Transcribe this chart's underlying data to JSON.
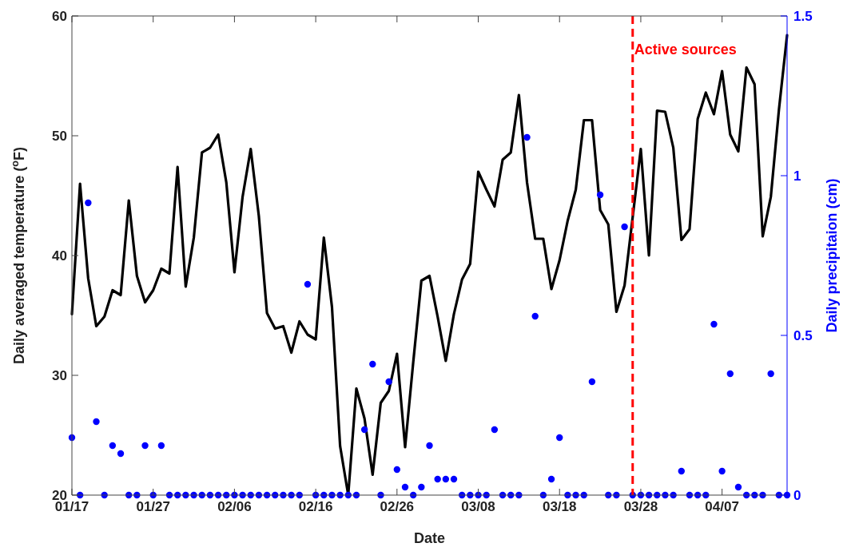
{
  "chart_data": {
    "type": "line",
    "xlabel": "Date",
    "ylabel": "Daily averaged temperature ($^{o}$F)",
    "y2label": "Daily precipitaion (cm)",
    "x": [
      "--01-17",
      "--01-18",
      "--01-19",
      "--01-20",
      "--01-21",
      "--01-22",
      "--01-23",
      "--01-24",
      "--01-25",
      "--01-26",
      "--01-27",
      "--01-28",
      "--01-29",
      "--01-30",
      "--01-31",
      "--02-01",
      "--02-02",
      "--02-03",
      "--02-04",
      "--02-05",
      "--02-06",
      "--02-07",
      "--02-08",
      "--02-09",
      "--02-10",
      "--02-11",
      "--02-12",
      "--02-13",
      "--02-14",
      "--02-15",
      "--02-16",
      "--02-17",
      "--02-18",
      "--02-19",
      "--02-20",
      "--02-21",
      "--02-22",
      "--02-23",
      "--02-24",
      "--02-25",
      "--02-26",
      "--02-27",
      "--02-28",
      "--03-01",
      "--03-02",
      "--03-03",
      "--03-04",
      "--03-05",
      "--03-06",
      "--03-07",
      "--03-08",
      "--03-09",
      "--03-10",
      "--03-11",
      "--03-12",
      "--03-13",
      "--03-14",
      "--03-15",
      "--03-16",
      "--03-17",
      "--03-18",
      "--03-19",
      "--03-20",
      "--03-21",
      "--03-22",
      "--03-23",
      "--03-24",
      "--03-25",
      "--03-26",
      "--03-27",
      "--03-28",
      "--03-29",
      "--03-30",
      "--03-31",
      "--04-01",
      "--04-02",
      "--04-03",
      "--04-04",
      "--04-05",
      "--04-06",
      "--04-07",
      "--04-08",
      "--04-09",
      "--04-10",
      "--04-11",
      "--04-12",
      "--04-13",
      "--04-14",
      "--04-15"
    ],
    "xlim": [
      "--01-17",
      "--04-15"
    ],
    "xticks": [
      {
        "value": "--01-17",
        "label": "01/17"
      },
      {
        "value": "--01-27",
        "label": "01/27"
      },
      {
        "value": "--02-06",
        "label": "02/06"
      },
      {
        "value": "--02-16",
        "label": "02/16"
      },
      {
        "value": "--02-26",
        "label": "02/26"
      },
      {
        "value": "--03-08",
        "label": "03/08"
      },
      {
        "value": "--03-18",
        "label": "03/18"
      },
      {
        "value": "--03-28",
        "label": "03/28"
      },
      {
        "value": "--04-07",
        "label": "04/07"
      }
    ],
    "ylim": [
      20,
      60
    ],
    "yticks": [
      20,
      30,
      40,
      50,
      60
    ],
    "y2lim": [
      0,
      1.5
    ],
    "y2ticks": [
      0,
      0.5,
      1,
      1.5
    ],
    "series": [
      {
        "color": "#000000",
        "values": [
          35.1,
          46.0,
          38.1,
          34.1,
          34.9,
          37.1,
          36.7,
          44.6,
          38.3,
          36.1,
          37.1,
          38.9,
          38.5,
          47.4,
          37.4,
          41.5,
          48.6,
          49.0,
          50.1,
          46.1,
          38.6,
          44.9,
          48.9,
          43.3,
          35.2,
          33.9,
          34.1,
          31.9,
          34.5,
          33.4,
          33.0,
          41.5,
          35.7,
          24.1,
          20.0,
          28.9,
          26.4,
          21.7,
          27.7,
          28.7,
          31.8,
          24.0,
          31.1,
          37.9,
          38.3,
          34.9,
          31.2,
          35.1,
          38.0,
          39.3,
          47.0,
          45.5,
          44.1,
          48.0,
          48.6,
          53.4,
          46.1,
          41.4,
          41.4,
          37.2,
          39.6,
          42.9,
          45.5,
          51.3,
          51.3,
          43.8,
          42.6,
          35.3,
          37.5,
          43.2,
          48.9,
          40.0,
          52.1,
          52.0,
          49.0,
          41.3,
          42.2,
          51.4,
          53.6,
          51.8,
          55.4,
          50.1,
          48.7,
          55.7,
          54.3,
          41.6,
          44.9,
          52.2,
          58.4
        ]
      },
      {
        "type": "scatter",
        "axis": "y2",
        "marker": "circle",
        "color": "#0000ff",
        "values": [
          0.18,
          0,
          0.915,
          0.23,
          0,
          0.155,
          0.13,
          0,
          0,
          0.155,
          0,
          0.155,
          0,
          0,
          0,
          0,
          0,
          0,
          0,
          0,
          0,
          0,
          0,
          0,
          0,
          0,
          0,
          0,
          0,
          0.66,
          0,
          0,
          0,
          0,
          0,
          0,
          0.205,
          0.41,
          0,
          0.355,
          0.08,
          0.025,
          0,
          0.025,
          0.155,
          0.05,
          0.05,
          0.05,
          0,
          0,
          0,
          0,
          0.205,
          0,
          0,
          0,
          1.12,
          0.56,
          0,
          0.05,
          0.18,
          0,
          0,
          0,
          0.355,
          0.94,
          0,
          0,
          0.84,
          0,
          0,
          0,
          0,
          0,
          0,
          0.075,
          0,
          0,
          0,
          0.535,
          0.075,
          0.38,
          0.025,
          0,
          0,
          0,
          0.38,
          0,
          0
        ]
      }
    ],
    "ref_lines": [
      {
        "axis": "x",
        "value": "--03-27",
        "label": "Active sources",
        "color": "#ff0000",
        "line_style": "dashed"
      }
    ]
  }
}
